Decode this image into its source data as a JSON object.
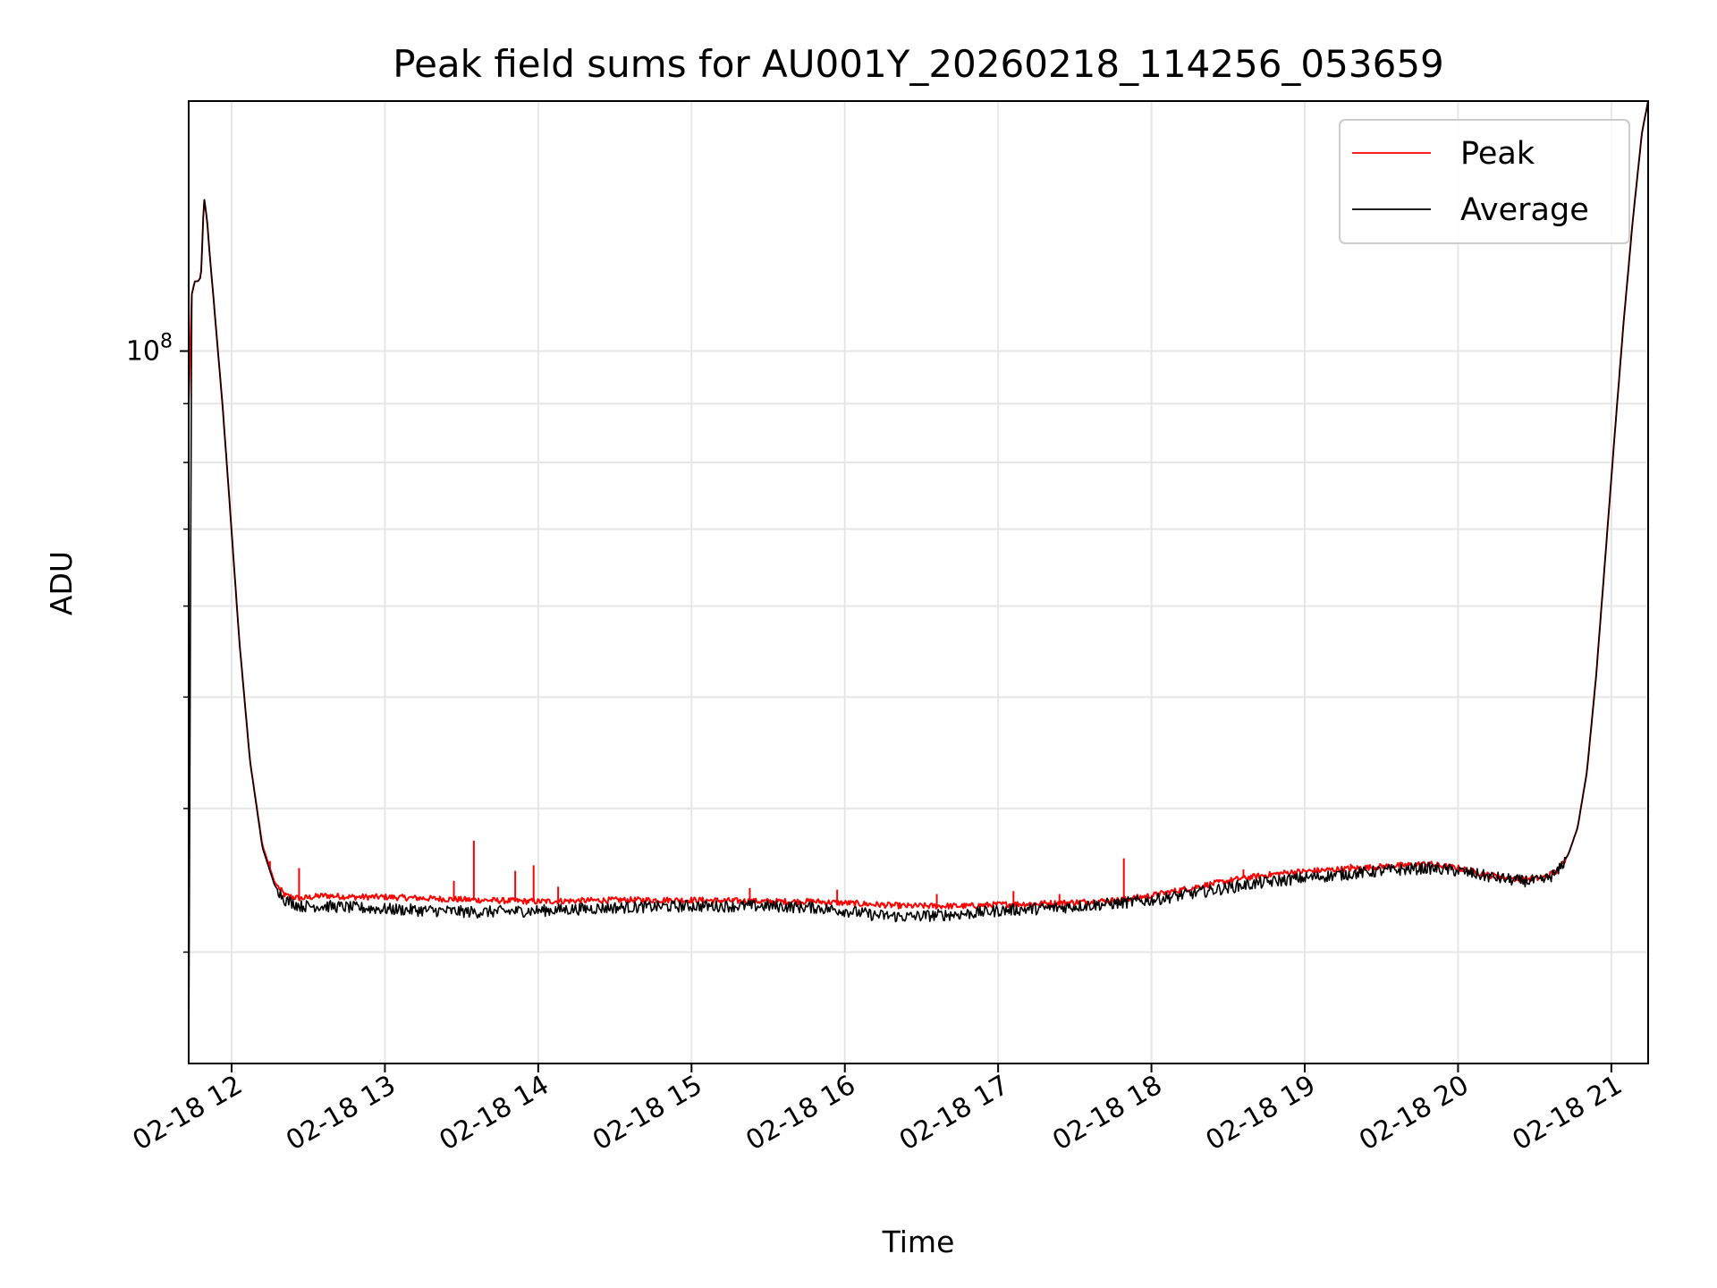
{
  "chart_data": {
    "type": "line",
    "title": "Peak field sums for AU001Y_20260218_114256_053659",
    "xlabel": "Time",
    "ylabel": "ADU",
    "x_unit": "hours (time of day on 2026-02-18)",
    "xlim": [
      11.72,
      21.24
    ],
    "y_scale": "log",
    "ylim": [
      24000000,
      165000000
    ],
    "x_ticks": [
      12,
      13,
      14,
      15,
      16,
      17,
      18,
      19,
      20,
      21
    ],
    "x_tick_labels": [
      "02-18 12",
      "02-18 13",
      "02-18 14",
      "02-18 15",
      "02-18 16",
      "02-18 17",
      "02-18 18",
      "02-18 19",
      "02-18 20",
      "02-18 21"
    ],
    "y_major_ticks": [
      100000000
    ],
    "y_major_tick_labels": [
      {
        "base": "10",
        "exp": "8"
      }
    ],
    "y_minor_ticks": [
      30000000,
      40000000,
      50000000,
      60000000,
      70000000,
      80000000,
      90000000
    ],
    "grid": true,
    "legend_position": "top-right",
    "series": [
      {
        "name": "Peak",
        "color": "#ff0000",
        "x": [
          11.72,
          11.74,
          11.76,
          11.78,
          11.8,
          11.82,
          11.84,
          11.86,
          11.88,
          11.9,
          11.94,
          11.98,
          12.05,
          12.12,
          12.2,
          12.28,
          12.35,
          12.45,
          12.6,
          12.8,
          13.0,
          13.3,
          13.6,
          14.0,
          14.5,
          15.0,
          15.5,
          15.8,
          16.0,
          16.2,
          16.4,
          16.8,
          17.0,
          17.4,
          17.8,
          18.0,
          18.3,
          18.6,
          18.9,
          19.2,
          19.5,
          19.8,
          20.0,
          20.2,
          20.4,
          20.55,
          20.65,
          20.72,
          20.78,
          20.84,
          20.9,
          20.96,
          21.02,
          21.08,
          21.14,
          21.2,
          21.24
        ],
        "y": [
          90000000,
          112000000,
          115000000,
          115000000,
          116000000,
          136000000,
          130000000,
          120000000,
          112000000,
          104000000,
          90000000,
          76000000,
          56000000,
          44000000,
          37200000,
          34500000,
          33600000,
          33400000,
          33600000,
          33500000,
          33500000,
          33400000,
          33300000,
          33200000,
          33300000,
          33300000,
          33200000,
          33200000,
          33100000,
          33000000,
          32900000,
          32900000,
          33000000,
          33100000,
          33300000,
          33600000,
          34200000,
          34800000,
          35200000,
          35400000,
          35600000,
          35800000,
          35500000,
          35000000,
          34700000,
          34800000,
          35300000,
          36500000,
          38500000,
          43000000,
          52000000,
          66000000,
          84000000,
          106000000,
          130000000,
          155000000,
          165000000
        ],
        "spikes": [
          {
            "x": 12.25,
            "y": 36000000
          },
          {
            "x": 12.44,
            "y": 35500000
          },
          {
            "x": 13.58,
            "y": 37500000
          },
          {
            "x": 13.85,
            "y": 35300000
          },
          {
            "x": 13.97,
            "y": 35700000
          },
          {
            "x": 13.45,
            "y": 34600000
          },
          {
            "x": 14.13,
            "y": 34200000
          },
          {
            "x": 15.38,
            "y": 34100000
          },
          {
            "x": 15.95,
            "y": 34000000
          },
          {
            "x": 16.6,
            "y": 33700000
          },
          {
            "x": 17.1,
            "y": 33900000
          },
          {
            "x": 17.4,
            "y": 33700000
          },
          {
            "x": 17.82,
            "y": 36200000
          },
          {
            "x": 18.6,
            "y": 35400000
          },
          {
            "x": 19.3,
            "y": 35800000
          }
        ]
      },
      {
        "name": "Average",
        "color": "#000000",
        "x": [
          11.72,
          11.74,
          11.76,
          11.78,
          11.8,
          11.82,
          11.84,
          11.86,
          11.88,
          11.9,
          11.94,
          11.98,
          12.05,
          12.12,
          12.2,
          12.28,
          12.35,
          12.45,
          12.6,
          12.8,
          13.0,
          13.3,
          13.6,
          14.0,
          14.5,
          15.0,
          15.5,
          15.8,
          16.0,
          16.2,
          16.4,
          16.8,
          17.0,
          17.4,
          17.8,
          18.0,
          18.3,
          18.6,
          18.9,
          19.2,
          19.5,
          19.8,
          20.0,
          20.2,
          20.4,
          20.55,
          20.65,
          20.72,
          20.78,
          20.84,
          20.9,
          20.96,
          21.02,
          21.08,
          21.14,
          21.2,
          21.24
        ],
        "y": [
          24000000,
          112000000,
          115000000,
          115000000,
          116000000,
          136000000,
          130000000,
          120000000,
          112000000,
          104000000,
          90000000,
          76000000,
          56000000,
          44000000,
          37000000,
          34300000,
          33300000,
          32900000,
          32900000,
          32800000,
          32700000,
          32600000,
          32500000,
          32600000,
          32800000,
          32900000,
          32900000,
          32800000,
          32600000,
          32300000,
          32200000,
          32400000,
          32600000,
          32800000,
          33100000,
          33300000,
          33800000,
          34300000,
          34700000,
          35000000,
          35300000,
          35500000,
          35300000,
          34900000,
          34600000,
          34600000,
          35200000,
          36500000,
          38500000,
          43000000,
          52000000,
          66000000,
          84000000,
          106000000,
          130000000,
          155000000,
          165000000
        ]
      }
    ]
  }
}
